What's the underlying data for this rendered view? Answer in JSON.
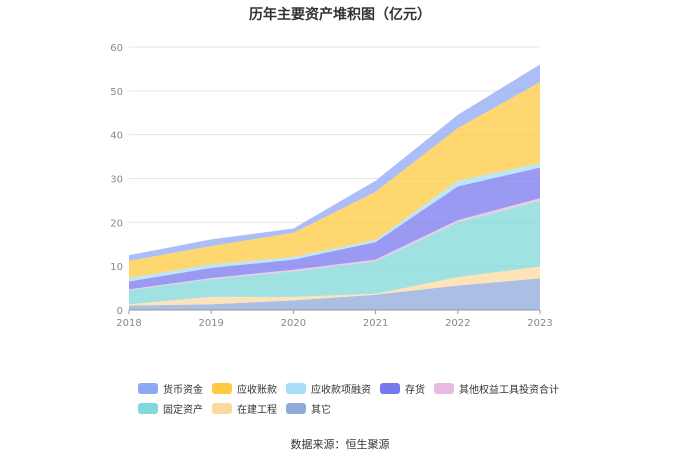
{
  "chart_data": {
    "type": "area",
    "stacked": true,
    "title": "历年主要资产堆积图（亿元）",
    "x": [
      "2018",
      "2019",
      "2020",
      "2021",
      "2022",
      "2023"
    ],
    "ylim": [
      0,
      60
    ],
    "yticks": [
      0,
      10,
      20,
      30,
      40,
      50,
      60
    ],
    "xlabel": "",
    "ylabel": "",
    "grid": true,
    "legend_position": "bottom",
    "series": [
      {
        "name": "其它",
        "color": "#8FAADC",
        "values": [
          1.0,
          1.3,
          2.2,
          3.5,
          5.6,
          7.2
        ]
      },
      {
        "name": "在建工程",
        "color": "#FDD9A0",
        "values": [
          0.3,
          1.7,
          0.8,
          0.2,
          1.9,
          2.7
        ]
      },
      {
        "name": "固定资产",
        "color": "#80D8D8",
        "values": [
          3.2,
          4.0,
          5.8,
          7.4,
          12.5,
          15.0
        ]
      },
      {
        "name": "其他权益工具投资合计",
        "color": "#E9B8E4",
        "values": [
          0.2,
          0.3,
          0.4,
          0.4,
          0.5,
          0.6
        ]
      },
      {
        "name": "存货",
        "color": "#7878EE",
        "values": [
          1.8,
          2.3,
          2.3,
          4.0,
          7.7,
          7.0
        ]
      },
      {
        "name": "应收款项融资",
        "color": "#A7DEF7",
        "values": [
          0.8,
          0.8,
          0.6,
          0.5,
          1.3,
          1.0
        ]
      },
      {
        "name": "应收账款",
        "color": "#FFC940",
        "values": [
          3.9,
          4.2,
          5.5,
          11.0,
          12.0,
          18.5
        ]
      },
      {
        "name": "货币资金",
        "color": "#8FA8F5",
        "values": [
          1.3,
          1.5,
          1.0,
          2.5,
          3.0,
          4.0
        ]
      }
    ]
  },
  "legend_order": [
    [
      "货币资金",
      "应收账款",
      "应收款项融资",
      "存货",
      "其他权益工具投资合计"
    ],
    [
      "固定资产",
      "在建工程",
      "其它"
    ]
  ],
  "source_text": "数据来源：恒生聚源"
}
